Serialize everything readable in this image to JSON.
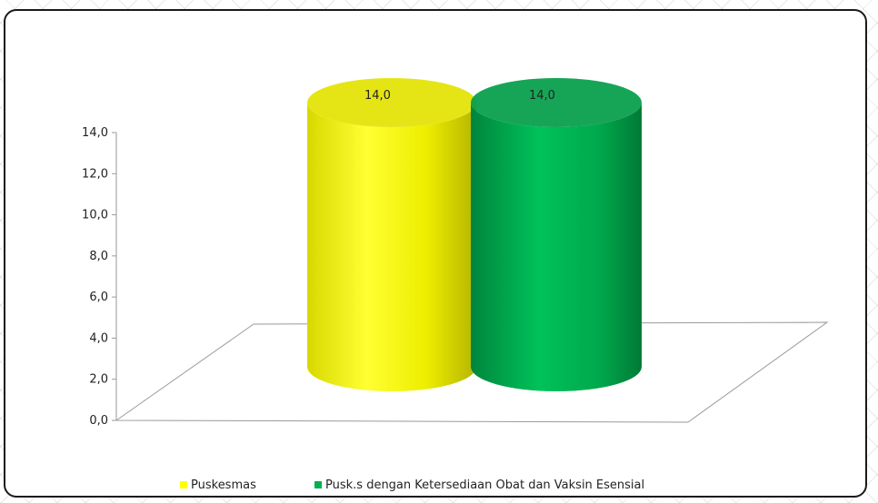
{
  "chart_data": {
    "type": "bar",
    "subtype": "3d-cylinder",
    "title": "",
    "xlabel": "",
    "ylabel": "",
    "ylim": [
      0,
      14
    ],
    "y_ticks": [
      "0,0",
      "2,0",
      "4,0",
      "6,0",
      "8,0",
      "10,0",
      "12,0",
      "14,0"
    ],
    "grid": false,
    "legend_position": "bottom",
    "series": [
      {
        "name": "Puskesmas",
        "values": [
          14.0
        ],
        "label": "14,0",
        "color": "#ffff00"
      },
      {
        "name": "Pusk.s dengan Ketersediaan Obat dan Vaksin Esensial",
        "values": [
          14.0
        ],
        "label": "14,0",
        "color": "#00b050"
      }
    ]
  }
}
